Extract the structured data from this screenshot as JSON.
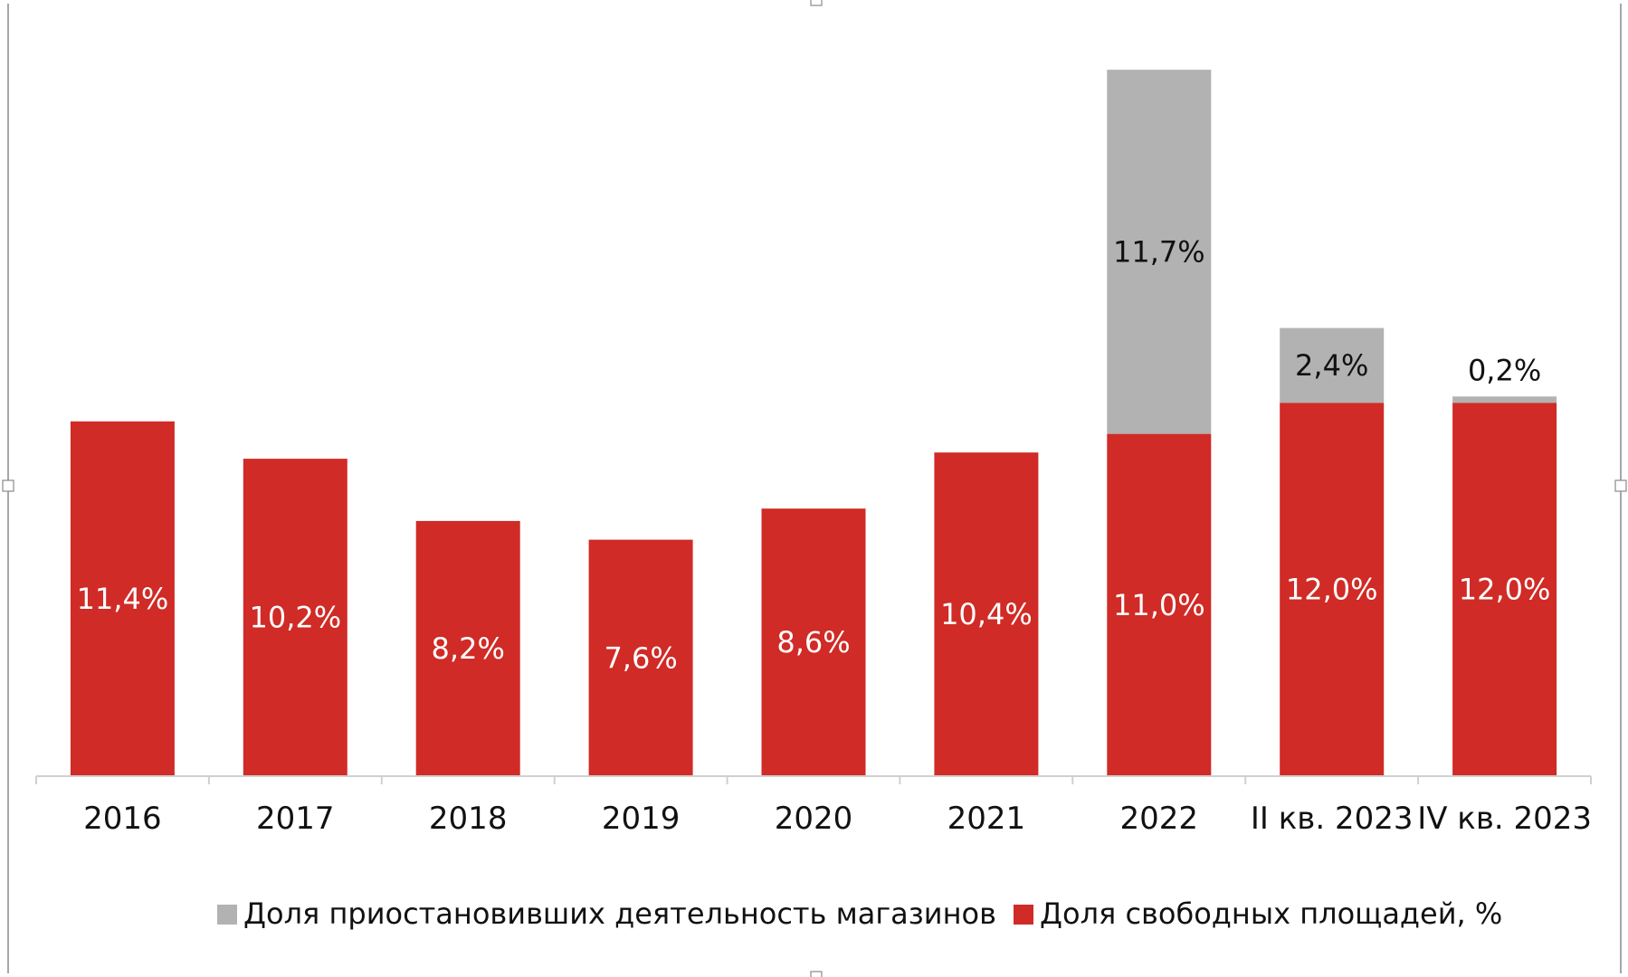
{
  "chart_data": {
    "type": "bar",
    "stacked": true,
    "categories": [
      "2016",
      "2017",
      "2018",
      "2019",
      "2020",
      "2021",
      "2022",
      "II кв. 2023",
      "IV кв. 2023"
    ],
    "series": [
      {
        "name": "Доля свободных площадей, %",
        "color": "#d02b26",
        "values": [
          11.4,
          10.2,
          8.2,
          7.6,
          8.6,
          10.4,
          11.0,
          12.0,
          12.0
        ],
        "labels": [
          "11,4%",
          "10,2%",
          "8,2%",
          "7,6%",
          "8,6%",
          "10,4%",
          "11,0%",
          "12,0%",
          "12,0%"
        ],
        "label_color": "#ffffff"
      },
      {
        "name": "Доля приостановивших деятельность магазинов",
        "color": "#b2b2b2",
        "values": [
          null,
          null,
          null,
          null,
          null,
          null,
          11.7,
          2.4,
          0.2
        ],
        "labels": [
          "",
          "",
          "",
          "",
          "",
          "",
          "11,7%",
          "2,4%",
          "0,2%"
        ],
        "label_color": "#111111"
      }
    ],
    "legend_order": [
      1,
      0
    ],
    "ylim": [
      0,
      23
    ],
    "legend_position": "bottom",
    "grid": false
  }
}
